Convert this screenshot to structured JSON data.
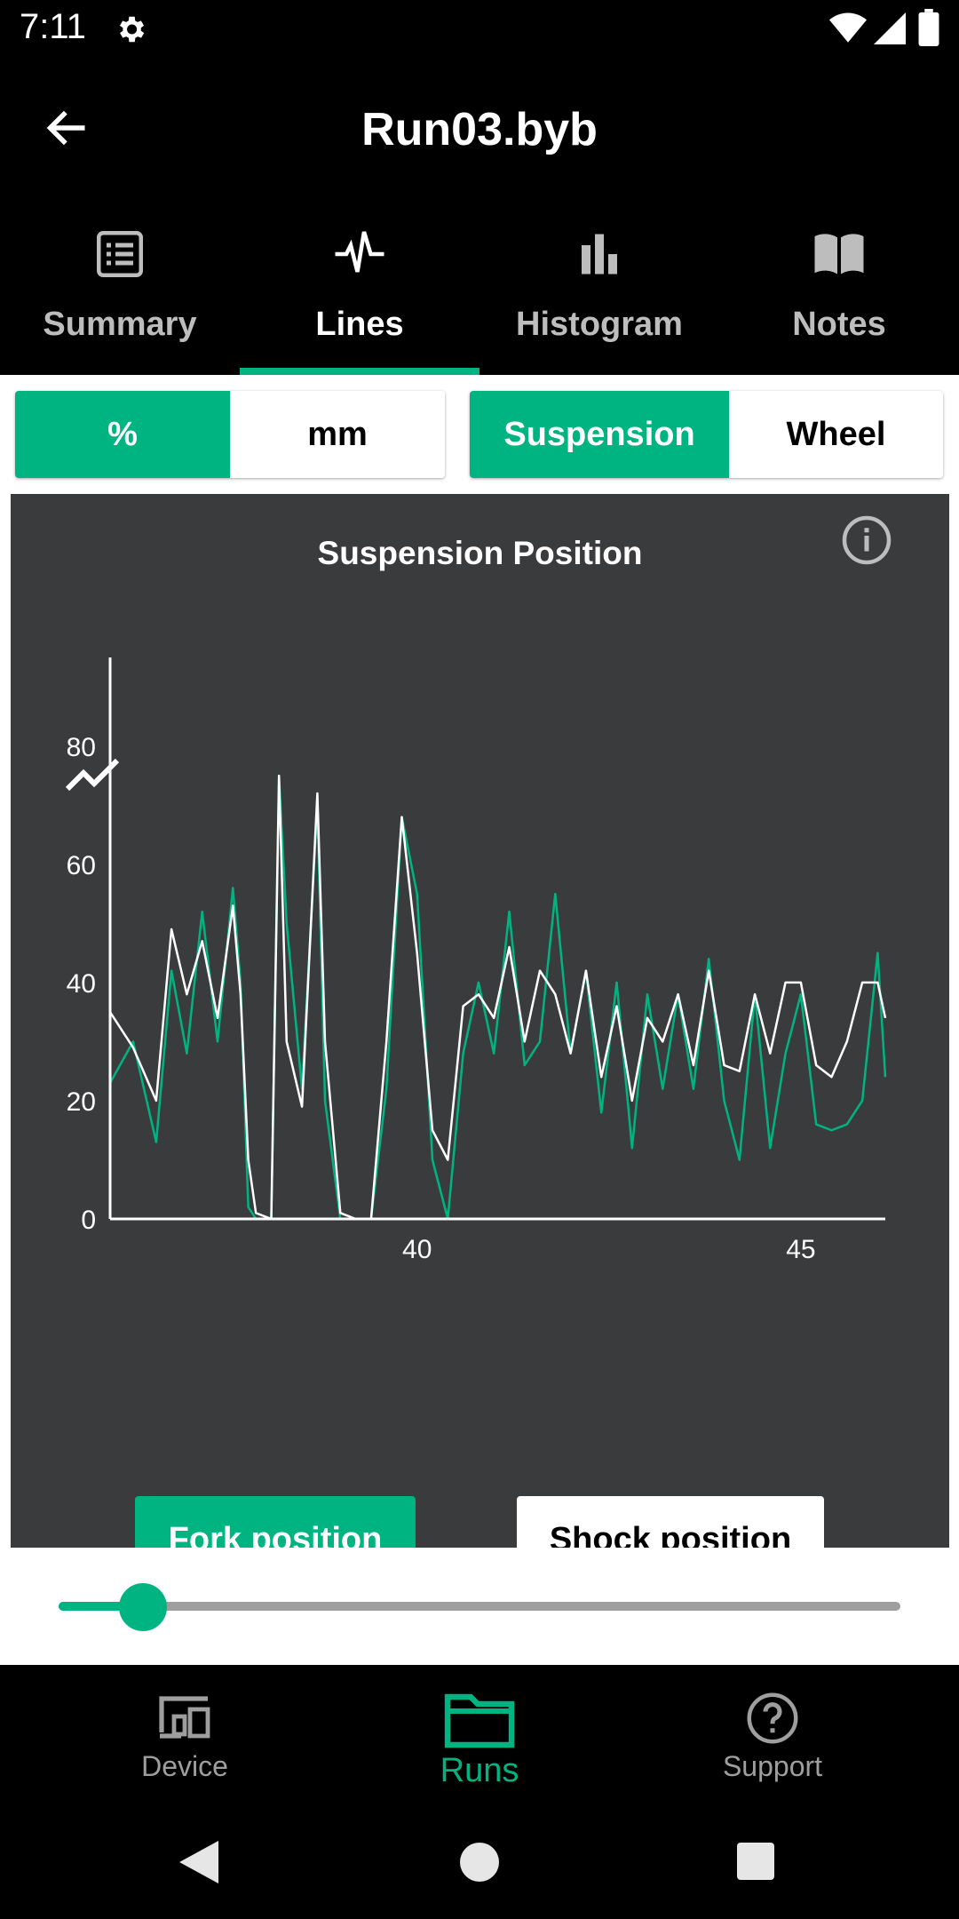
{
  "status_bar": {
    "time": "7:11",
    "settings_icon": "gear-icon",
    "wifi_icon": "wifi-icon",
    "signal_icon": "signal-icon",
    "battery_icon": "battery-icon"
  },
  "app_bar": {
    "title": "Run03.byb",
    "back_icon": "arrow-back-icon"
  },
  "tabs": [
    {
      "label": "Summary",
      "icon": "list-icon",
      "active": false
    },
    {
      "label": "Lines",
      "icon": "pulse-icon",
      "active": true
    },
    {
      "label": "Histogram",
      "icon": "bar-chart-icon",
      "active": false
    },
    {
      "label": "Notes",
      "icon": "book-icon",
      "active": false
    }
  ],
  "unit_toggle": {
    "options": [
      "%",
      "mm"
    ],
    "selected": "%"
  },
  "mode_toggle": {
    "options": [
      "Suspension",
      "Wheel"
    ],
    "selected": "Suspension"
  },
  "chart": {
    "title": "Suspension Position",
    "info_icon": "info-icon",
    "trend_icon": "trend-icon",
    "buttons": {
      "fork": "Fork position",
      "shock": "Shock position",
      "selected": "fork"
    },
    "colors": {
      "fork": "#00b482",
      "shock": "#ffffff",
      "background": "#3a3b3d"
    }
  },
  "chart_data": {
    "type": "line",
    "title": "Suspension Position",
    "xlabel": "",
    "ylabel": "",
    "x_ticks": [
      "40",
      "45"
    ],
    "y_ticks": [
      "0",
      "20",
      "40",
      "60",
      "80"
    ],
    "xlim": [
      36,
      46.1
    ],
    "ylim": [
      0,
      95
    ],
    "grid": false,
    "x": [
      36,
      36.3,
      36.6,
      36.8,
      37,
      37.2,
      37.4,
      37.6,
      37.7,
      37.8,
      37.9,
      38.1,
      38.2,
      38.3,
      38.5,
      38.7,
      38.8,
      39,
      39.2,
      39.4,
      39.6,
      39.8,
      40,
      40.2,
      40.4,
      40.6,
      40.8,
      41,
      41.2,
      41.4,
      41.6,
      41.8,
      42,
      42.2,
      42.4,
      42.6,
      42.8,
      43,
      43.2,
      43.4,
      43.6,
      43.8,
      44,
      44.2,
      44.4,
      44.6,
      44.8,
      45,
      45.2,
      45.4,
      45.6,
      45.8,
      46,
      46.1
    ],
    "series": [
      {
        "name": "Fork position",
        "values": [
          23,
          30,
          13,
          42,
          28,
          52,
          30,
          56,
          40,
          2,
          0,
          0,
          75,
          50,
          22,
          70,
          20,
          0,
          0,
          0,
          22,
          68,
          55,
          10,
          0,
          28,
          40,
          28,
          52,
          26,
          30,
          55,
          28,
          42,
          18,
          40,
          12,
          38,
          22,
          38,
          22,
          44,
          20,
          10,
          38,
          12,
          28,
          38,
          16,
          15,
          16,
          20,
          45,
          24
        ]
      },
      {
        "name": "Shock position",
        "values": [
          35,
          29,
          20,
          49,
          38,
          47,
          34,
          53,
          38,
          10,
          1,
          0,
          75,
          30,
          19,
          72,
          30,
          1,
          0,
          0,
          30,
          68,
          45,
          15,
          10,
          36,
          38,
          34,
          46,
          30,
          42,
          38,
          28,
          42,
          24,
          36,
          20,
          34,
          30,
          38,
          26,
          42,
          26,
          25,
          38,
          28,
          40,
          40,
          26,
          24,
          30,
          40,
          40,
          34
        ]
      }
    ]
  },
  "slider": {
    "value": 0.1
  },
  "bottom_nav": [
    {
      "label": "Device",
      "icon": "devices-icon",
      "active": false
    },
    {
      "label": "Runs",
      "icon": "folder-icon",
      "active": true
    },
    {
      "label": "Support",
      "icon": "help-icon",
      "active": false
    }
  ],
  "system_nav": {
    "back": "back-triangle-icon",
    "home": "home-circle-icon",
    "recents": "recents-square-icon"
  }
}
